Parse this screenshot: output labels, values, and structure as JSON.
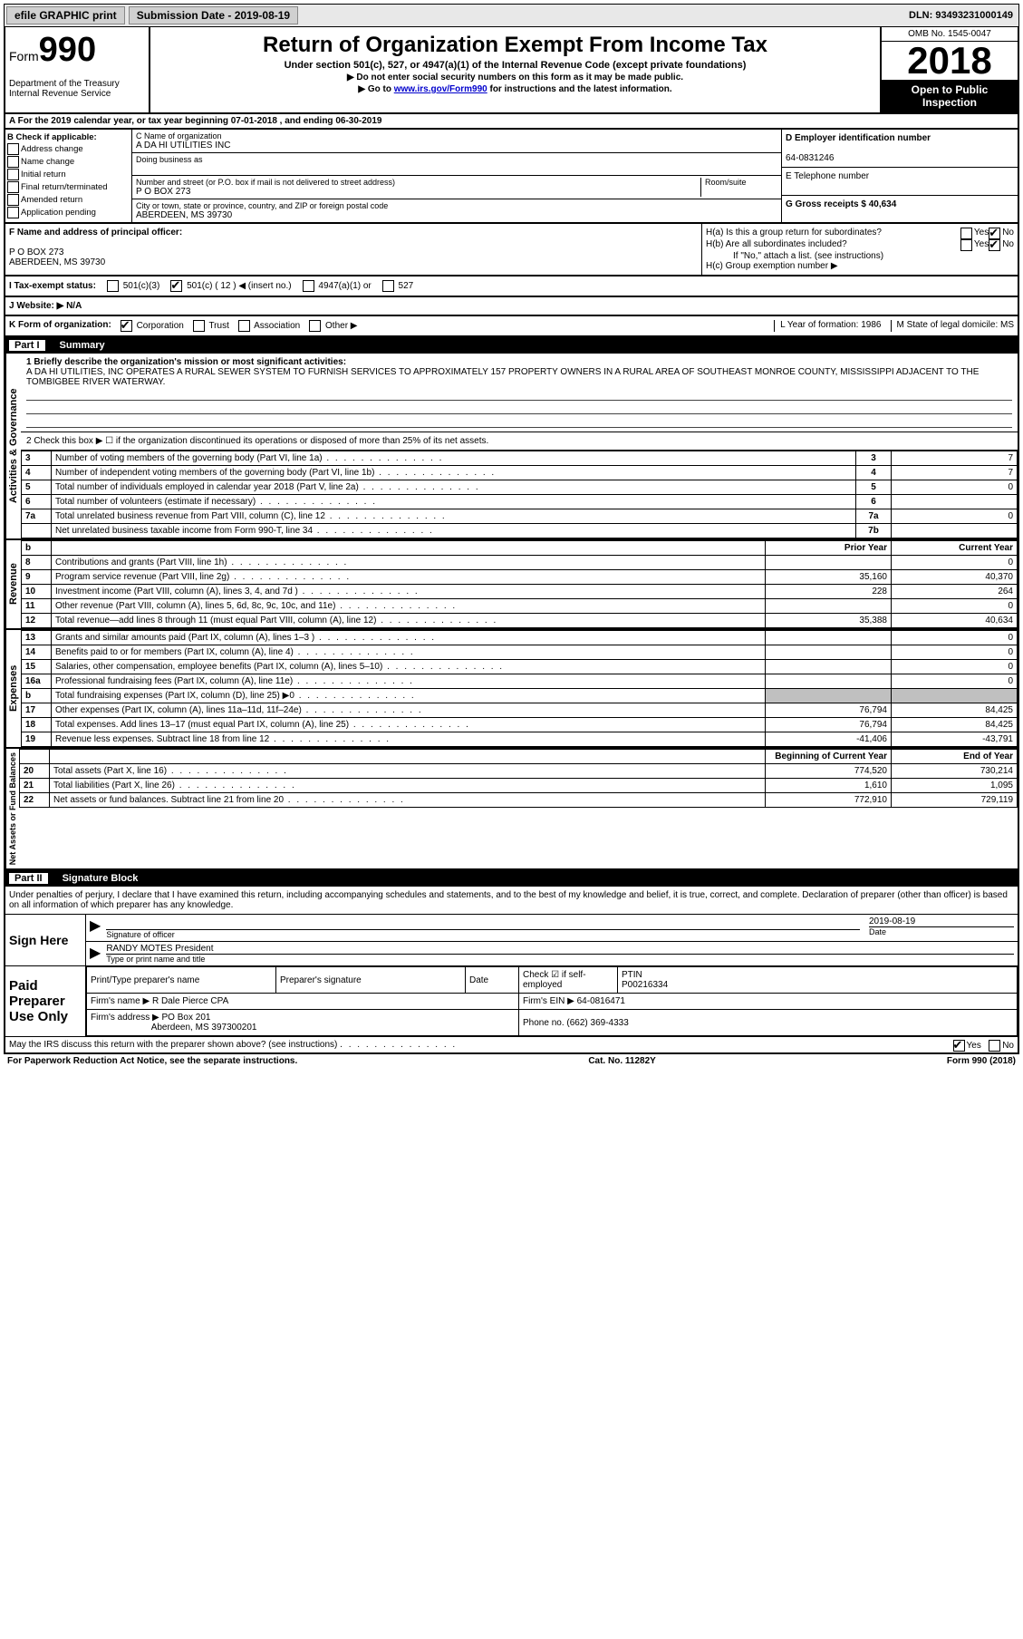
{
  "topbar": {
    "efile": "efile GRAPHIC print",
    "submission_label": "Submission Date - 2019-08-19",
    "dln": "DLN: 93493231000149"
  },
  "header": {
    "form_prefix": "Form",
    "form_number": "990",
    "dept": "Department of the Treasury",
    "irs": "Internal Revenue Service",
    "title": "Return of Organization Exempt From Income Tax",
    "subtitle": "Under section 501(c), 527, or 4947(a)(1) of the Internal Revenue Code (except private foundations)",
    "arrow1": "▶ Do not enter social security numbers on this form as it may be made public.",
    "arrow2_pre": "▶ Go to ",
    "arrow2_link": "www.irs.gov/Form990",
    "arrow2_post": " for instructions and the latest information.",
    "omb": "OMB No. 1545-0047",
    "year": "2018",
    "open": "Open to Public Inspection"
  },
  "line_a": "A For the 2019 calendar year, or tax year beginning 07-01-2018    , and ending 06-30-2019",
  "box_b": {
    "label": "B Check if applicable:",
    "items": [
      "Address change",
      "Name change",
      "Initial return",
      "Final return/terminated",
      "Amended return",
      "Application pending"
    ]
  },
  "box_c": {
    "name_label": "C Name of organization",
    "name": "A DA HI UTILITIES INC",
    "dba_label": "Doing business as",
    "addr_label": "Number and street (or P.O. box if mail is not delivered to street address)",
    "room_label": "Room/suite",
    "addr": "P O BOX 273",
    "city_label": "City or town, state or province, country, and ZIP or foreign postal code",
    "city": "ABERDEEN, MS  39730"
  },
  "box_d": {
    "ein_label": "D Employer identification number",
    "ein": "64-0831246",
    "tel_label": "E Telephone number",
    "gross_label": "G Gross receipts $ 40,634"
  },
  "box_f": {
    "label": "F  Name and address of principal officer:",
    "addr1": "P O BOX 273",
    "addr2": "ABERDEEN, MS  39730"
  },
  "box_h": {
    "ha": "H(a)  Is this a group return for subordinates?",
    "hb": "H(b)  Are all subordinates included?",
    "hb_note": "If \"No,\" attach a list. (see instructions)",
    "hc": "H(c)  Group exemption number ▶"
  },
  "tax_status": {
    "label": "I   Tax-exempt status:",
    "opts": [
      "501(c)(3)",
      "501(c) ( 12 ) ◀ (insert no.)",
      "4947(a)(1) or",
      "527"
    ]
  },
  "line_j": "J   Website: ▶   N/A",
  "line_k": {
    "k": "K Form of organization:",
    "opts": [
      "Corporation",
      "Trust",
      "Association",
      "Other ▶"
    ],
    "l": "L Year of formation: 1986",
    "m": "M State of legal domicile: MS"
  },
  "part1": {
    "label": "Part I",
    "title": "Summary"
  },
  "summary": {
    "line1_label": "1  Briefly describe the organization's mission or most significant activities:",
    "line1_text": "A DA HI UTILITIES, INC OPERATES A RURAL SEWER SYSTEM TO FURNISH SERVICES TO APPROXIMATELY 157 PROPERTY OWNERS IN A RURAL AREA OF SOUTHEAST MONROE COUNTY, MISSISSIPPI ADJACENT TO THE TOMBIGBEE RIVER WATERWAY.",
    "line2": "2   Check this box ▶ ☐ if the organization discontinued its operations or disposed of more than 25% of its net assets.",
    "vert_gov": "Activities & Governance",
    "vert_rev": "Revenue",
    "vert_exp": "Expenses",
    "vert_net": "Net Assets or Fund Balances"
  },
  "gov_rows": [
    {
      "n": "3",
      "t": "Number of voting members of the governing body (Part VI, line 1a)",
      "box": "3",
      "v": "7"
    },
    {
      "n": "4",
      "t": "Number of independent voting members of the governing body (Part VI, line 1b)",
      "box": "4",
      "v": "7"
    },
    {
      "n": "5",
      "t": "Total number of individuals employed in calendar year 2018 (Part V, line 2a)",
      "box": "5",
      "v": "0"
    },
    {
      "n": "6",
      "t": "Total number of volunteers (estimate if necessary)",
      "box": "6",
      "v": ""
    },
    {
      "n": "7a",
      "t": "Total unrelated business revenue from Part VIII, column (C), line 12",
      "box": "7a",
      "v": "0"
    },
    {
      "n": "",
      "t": "Net unrelated business taxable income from Form 990-T, line 34",
      "box": "7b",
      "v": ""
    }
  ],
  "two_col_header": {
    "prior": "Prior Year",
    "current": "Current Year"
  },
  "rev_rows": [
    {
      "n": "8",
      "t": "Contributions and grants (Part VIII, line 1h)",
      "p": "",
      "c": "0"
    },
    {
      "n": "9",
      "t": "Program service revenue (Part VIII, line 2g)",
      "p": "35,160",
      "c": "40,370"
    },
    {
      "n": "10",
      "t": "Investment income (Part VIII, column (A), lines 3, 4, and 7d )",
      "p": "228",
      "c": "264"
    },
    {
      "n": "11",
      "t": "Other revenue (Part VIII, column (A), lines 5, 6d, 8c, 9c, 10c, and 11e)",
      "p": "",
      "c": "0"
    },
    {
      "n": "12",
      "t": "Total revenue—add lines 8 through 11 (must equal Part VIII, column (A), line 12)",
      "p": "35,388",
      "c": "40,634"
    }
  ],
  "exp_rows": [
    {
      "n": "13",
      "t": "Grants and similar amounts paid (Part IX, column (A), lines 1–3 )",
      "p": "",
      "c": "0"
    },
    {
      "n": "14",
      "t": "Benefits paid to or for members (Part IX, column (A), line 4)",
      "p": "",
      "c": "0"
    },
    {
      "n": "15",
      "t": "Salaries, other compensation, employee benefits (Part IX, column (A), lines 5–10)",
      "p": "",
      "c": "0"
    },
    {
      "n": "16a",
      "t": "Professional fundraising fees (Part IX, column (A), line 11e)",
      "p": "",
      "c": "0"
    },
    {
      "n": "b",
      "t": "Total fundraising expenses (Part IX, column (D), line 25) ▶0",
      "p": "shade",
      "c": "shade"
    },
    {
      "n": "17",
      "t": "Other expenses (Part IX, column (A), lines 11a–11d, 11f–24e)",
      "p": "76,794",
      "c": "84,425"
    },
    {
      "n": "18",
      "t": "Total expenses. Add lines 13–17 (must equal Part IX, column (A), line 25)",
      "p": "76,794",
      "c": "84,425"
    },
    {
      "n": "19",
      "t": "Revenue less expenses. Subtract line 18 from line 12",
      "p": "-41,406",
      "c": "-43,791"
    }
  ],
  "net_header": {
    "b": "Beginning of Current Year",
    "e": "End of Year"
  },
  "net_rows": [
    {
      "n": "20",
      "t": "Total assets (Part X, line 16)",
      "p": "774,520",
      "c": "730,214"
    },
    {
      "n": "21",
      "t": "Total liabilities (Part X, line 26)",
      "p": "1,610",
      "c": "1,095"
    },
    {
      "n": "22",
      "t": "Net assets or fund balances. Subtract line 21 from line 20",
      "p": "772,910",
      "c": "729,119"
    }
  ],
  "part2": {
    "label": "Part II",
    "title": "Signature Block"
  },
  "sig": {
    "declaration": "Under penalties of perjury, I declare that I have examined this return, including accompanying schedules and statements, and to the best of my knowledge and belief, it is true, correct, and complete. Declaration of preparer (other than officer) is based on all information of which preparer has any knowledge.",
    "sign_here": "Sign Here",
    "sig_officer": "Signature of officer",
    "date": "2019-08-19",
    "date_label": "Date",
    "name": "RANDY MOTES President",
    "name_label": "Type or print name and title",
    "paid": "Paid Preparer Use Only",
    "pt_name": "Print/Type preparer's name",
    "pt_sig": "Preparer's signature",
    "pt_date": "Date",
    "pt_check": "Check ☑ if self-employed",
    "ptin_label": "PTIN",
    "ptin": "P00216334",
    "firm_name_label": "Firm's name    ▶",
    "firm_name": "R Dale Pierce CPA",
    "firm_ein_label": "Firm's EIN ▶",
    "firm_ein": "64-0816471",
    "firm_addr_label": "Firm's address ▶",
    "firm_addr1": "PO Box 201",
    "firm_addr2": "Aberdeen, MS  397300201",
    "phone_label": "Phone no.",
    "phone": "(662) 369-4333",
    "discuss": "May the IRS discuss this return with the preparer shown above? (see instructions)"
  },
  "footer": {
    "left": "For Paperwork Reduction Act Notice, see the separate instructions.",
    "mid": "Cat. No. 11282Y",
    "right": "Form 990 (2018)"
  }
}
